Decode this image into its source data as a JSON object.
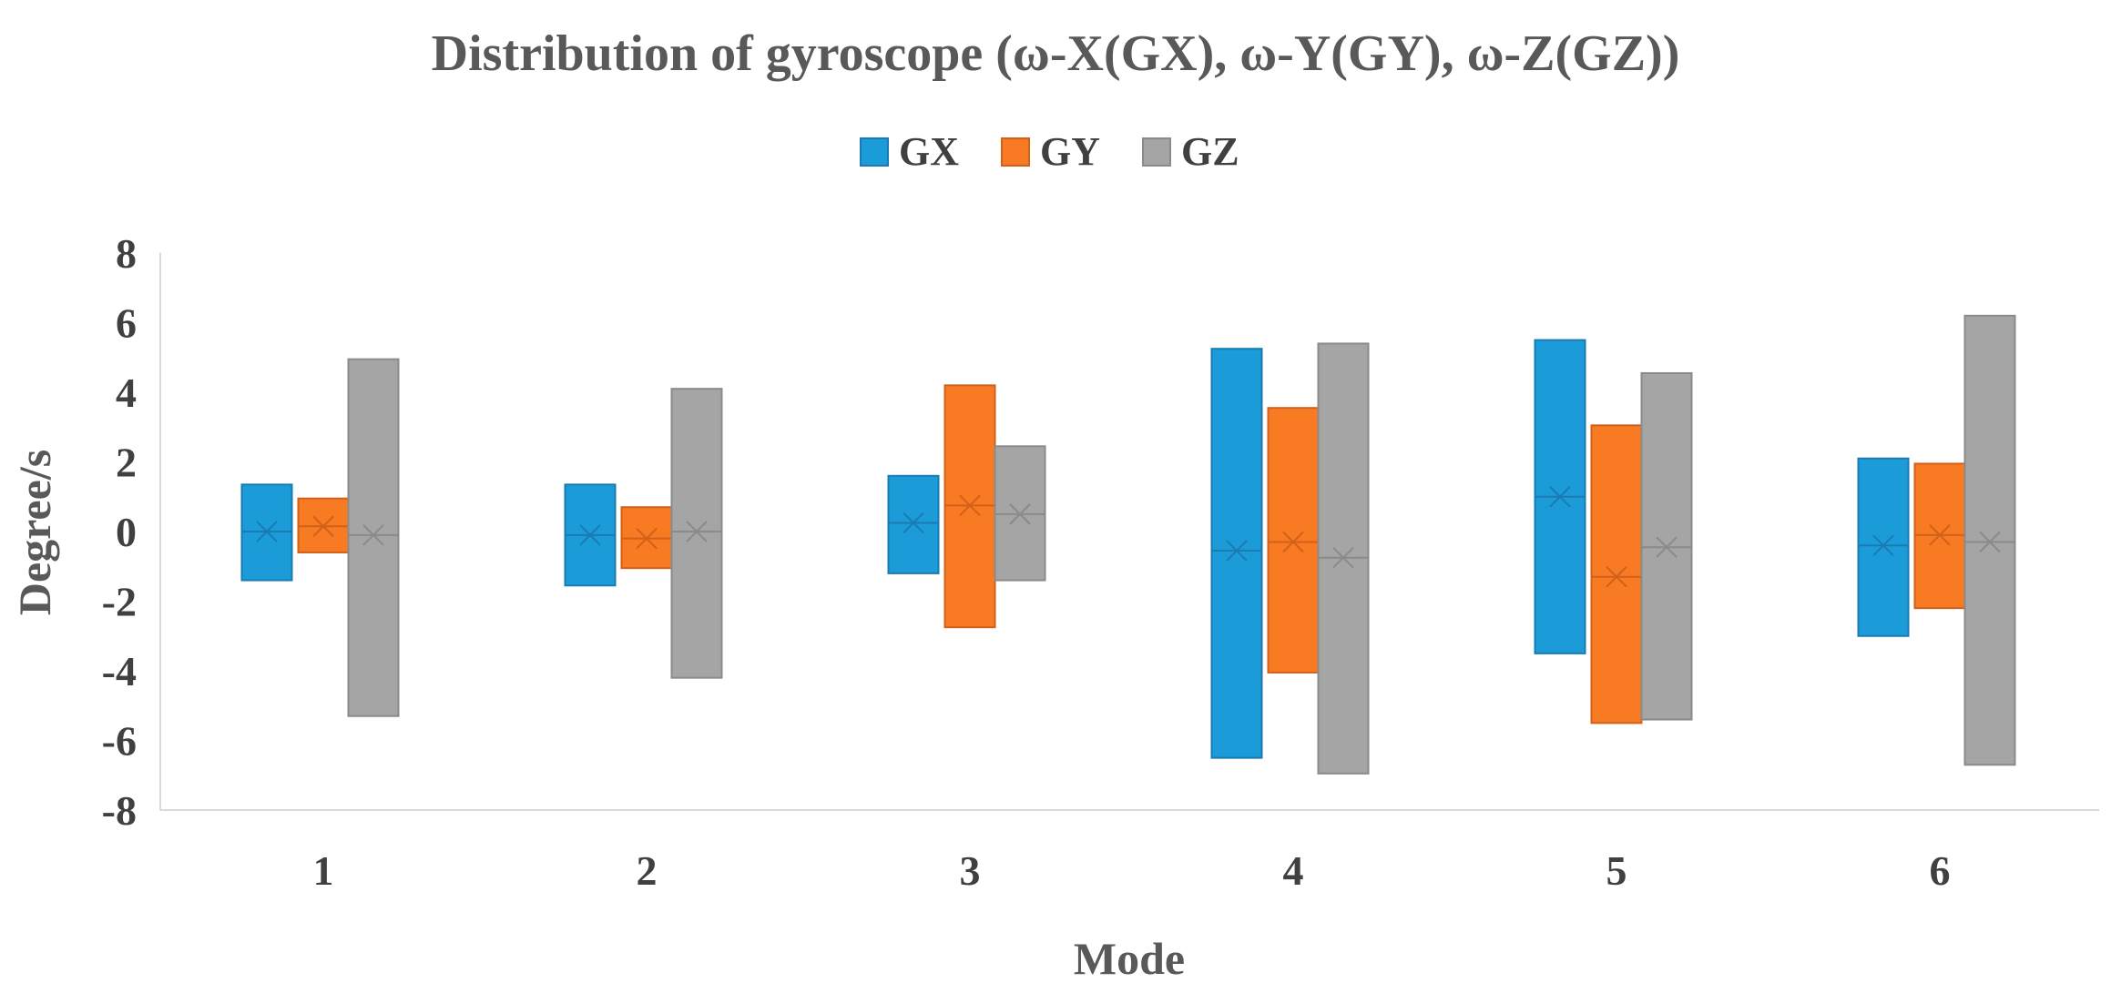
{
  "chart_data": {
    "type": "box",
    "title": "Distribution of gyroscope (ω-X(GX), ω-Y(GY), ω-Z(GZ))",
    "xlabel": "Mode",
    "ylabel": "Degree/s",
    "ylim": [
      -8,
      8
    ],
    "yticks": [
      8,
      6,
      4,
      2,
      0,
      -2,
      -4,
      -6,
      -8
    ],
    "ytick_labels": [
      "8",
      "6",
      "4",
      "2",
      "0",
      "-2",
      "-4",
      "-6",
      "-8"
    ],
    "categories": [
      "1",
      "2",
      "3",
      "4",
      "5",
      "6"
    ],
    "legend_position": "top-center",
    "grid": false,
    "series": [
      {
        "name": "GX",
        "color": "#1C9BD9",
        "border": "#1A7BB2",
        "low": [
          -1.4,
          -1.55,
          -1.2,
          -6.5,
          -3.5,
          -3.0
        ],
        "high": [
          1.35,
          1.35,
          1.6,
          5.25,
          5.5,
          2.1
        ],
        "mean": [
          0.0,
          -0.1,
          0.25,
          -0.55,
          1.0,
          -0.4
        ],
        "median": [
          0.0,
          -0.1,
          0.25,
          -0.55,
          1.0,
          -0.4
        ]
      },
      {
        "name": "GY",
        "color": "#F87A22",
        "border": "#D0601A",
        "low": [
          -0.6,
          -1.05,
          -2.75,
          -4.05,
          -5.5,
          -2.2
        ],
        "high": [
          0.95,
          0.7,
          4.2,
          3.55,
          3.05,
          1.95
        ],
        "mean": [
          0.15,
          -0.2,
          0.75,
          -0.3,
          -1.3,
          -0.1
        ],
        "median": [
          0.15,
          -0.2,
          0.75,
          -0.3,
          -1.3,
          -0.1
        ]
      },
      {
        "name": "GZ",
        "color": "#A5A5A5",
        "border": "#8A8A8A",
        "low": [
          -5.3,
          -4.2,
          -1.4,
          -6.95,
          -5.4,
          -6.7
        ],
        "high": [
          4.95,
          4.1,
          2.45,
          5.4,
          4.55,
          6.2
        ],
        "mean": [
          -0.1,
          0.0,
          0.5,
          -0.75,
          -0.45,
          -0.3
        ],
        "median": [
          -0.1,
          0.0,
          0.5,
          -0.75,
          -0.45,
          -0.3
        ]
      }
    ]
  }
}
